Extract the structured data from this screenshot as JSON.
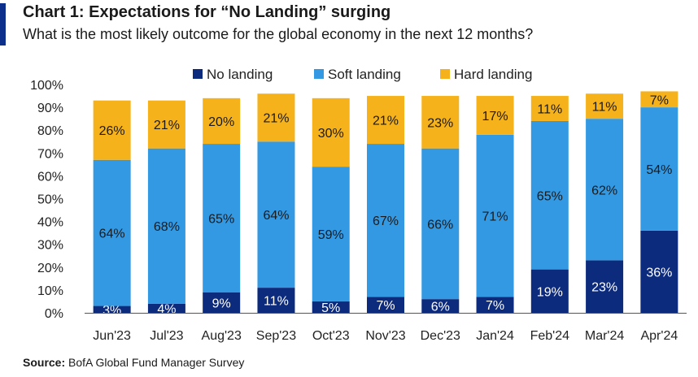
{
  "header": {
    "title": "Chart 1: Expectations for “No Landing” surging",
    "subtitle": "What is the most likely outcome for the global economy in the next 12 months?"
  },
  "footer": {
    "source_label": "Source:",
    "source_text": " BofA Global Fund Manager Survey"
  },
  "colors": {
    "accent": "#0d2f8c",
    "no_landing": "#0d2b7d",
    "soft_landing": "#3399e3",
    "hard_landing": "#f6b21a"
  },
  "chart_data": {
    "type": "bar",
    "stacked": true,
    "title": "Chart 1: Expectations for “No Landing” surging",
    "subtitle": "What is the most likely outcome for the global economy in the next 12 months?",
    "xlabel": "",
    "ylabel": "",
    "ylim": [
      0,
      100
    ],
    "yticks": [
      "0%",
      "10%",
      "20%",
      "30%",
      "40%",
      "50%",
      "60%",
      "70%",
      "80%",
      "90%",
      "100%"
    ],
    "grid": false,
    "legend_position": "top",
    "categories": [
      "Jun'23",
      "Jul'23",
      "Aug'23",
      "Sep'23",
      "Oct'23",
      "Nov'23",
      "Dec'23",
      "Jan'24",
      "Feb'24",
      "Mar'24",
      "Apr'24"
    ],
    "series": [
      {
        "name": "No landing",
        "color": "#0d2b7d",
        "label_color": "#ffffff",
        "values": [
          3,
          4,
          9,
          11,
          5,
          7,
          6,
          7,
          19,
          23,
          36
        ],
        "labels": [
          "3%",
          "4%",
          "9%",
          "11%",
          "5%",
          "7%",
          "6%",
          "7%",
          "19%",
          "23%",
          "36%"
        ]
      },
      {
        "name": "Soft landing",
        "color": "#3399e3",
        "label_color": "#1a1a1a",
        "values": [
          64,
          68,
          65,
          64,
          59,
          67,
          66,
          71,
          65,
          62,
          54
        ],
        "labels": [
          "64%",
          "68%",
          "65%",
          "64%",
          "59%",
          "67%",
          "66%",
          "71%",
          "65%",
          "62%",
          "54%"
        ]
      },
      {
        "name": "Hard landing",
        "color": "#f6b21a",
        "label_color": "#1a1a1a",
        "values": [
          26,
          21,
          20,
          21,
          30,
          21,
          23,
          17,
          11,
          11,
          7
        ],
        "labels": [
          "26%",
          "21%",
          "20%",
          "21%",
          "30%",
          "21%",
          "23%",
          "17%",
          "11%",
          "11%",
          "7%"
        ]
      }
    ]
  }
}
